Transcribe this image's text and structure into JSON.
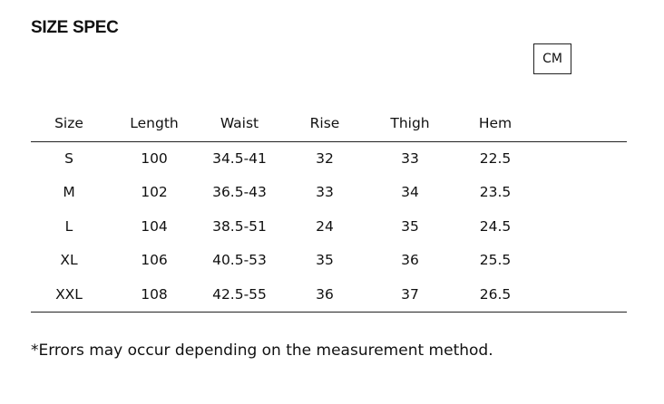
{
  "header": {
    "title": "SIZE SPEC",
    "unit_button": "CM"
  },
  "table": {
    "columns": [
      "Size",
      "Length",
      "Waist",
      "Rise",
      "Thigh",
      "Hem"
    ],
    "rows": [
      [
        "S",
        "100",
        "34.5-41",
        "32",
        "33",
        "22.5"
      ],
      [
        "M",
        "102",
        "36.5-43",
        "33",
        "34",
        "23.5"
      ],
      [
        "L",
        "104",
        "38.5-51",
        "24",
        "35",
        "24.5"
      ],
      [
        "XL",
        "106",
        "40.5-53",
        "35",
        "36",
        "25.5"
      ],
      [
        "XXL",
        "108",
        "42.5-55",
        "36",
        "37",
        "26.5"
      ]
    ]
  },
  "note": "*Errors may occur depending on the measurement method."
}
